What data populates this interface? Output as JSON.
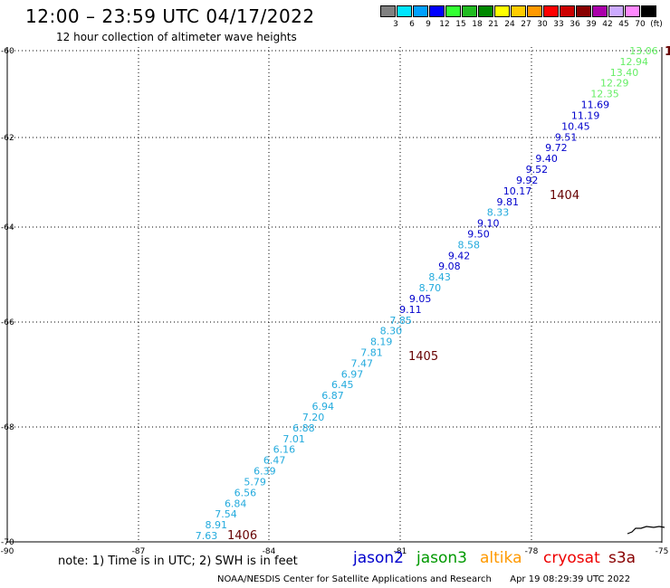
{
  "header": {
    "title": "12:00 – 23:59 UTC 04/17/2022",
    "subtitle": "12 hour collection of altimeter wave heights"
  },
  "colorbar": {
    "colors": [
      "#808080",
      "#00e5ff",
      "#00a0ff",
      "#0000ff",
      "#33ff33",
      "#22bb22",
      "#008800",
      "#ffff00",
      "#ffcc00",
      "#ff9900",
      "#ff0000",
      "#cc0000",
      "#880000",
      "#aa00aa",
      "#ccaaff",
      "#ff88ff",
      "#000000"
    ],
    "labels": [
      "3",
      "6",
      "9",
      "12",
      "15",
      "18",
      "21",
      "24",
      "27",
      "30",
      "33",
      "36",
      "39",
      "42",
      "45",
      "70",
      "(ft)"
    ]
  },
  "axes": {
    "x_ticks": [
      "-90",
      "-87",
      "-84",
      "-81",
      "-78",
      "-75"
    ],
    "y_ticks": [
      "-60",
      "-62",
      "-64",
      "-66",
      "-68",
      "-70"
    ]
  },
  "wave_heights": [
    {
      "value": "13.06",
      "color": "#66ee66"
    },
    {
      "value": "12.94",
      "color": "#66ee66"
    },
    {
      "value": "13.40",
      "color": "#66ee66"
    },
    {
      "value": "12.29",
      "color": "#66ee66"
    },
    {
      "value": "12.35",
      "color": "#66ee66"
    },
    {
      "value": "11.69",
      "color": "#0000cc"
    },
    {
      "value": "11.19",
      "color": "#0000cc"
    },
    {
      "value": "10.45",
      "color": "#0000cc"
    },
    {
      "value": "9.51",
      "color": "#0000cc"
    },
    {
      "value": "9.72",
      "color": "#0000cc"
    },
    {
      "value": "9.40",
      "color": "#0000cc"
    },
    {
      "value": "9.52",
      "color": "#0000cc"
    },
    {
      "value": "9.92",
      "color": "#0000cc"
    },
    {
      "value": "10.17",
      "color": "#0000cc"
    },
    {
      "value": "9.81",
      "color": "#0000cc"
    },
    {
      "value": "8.33",
      "color": "#22aadd"
    },
    {
      "value": "9.10",
      "color": "#0000cc"
    },
    {
      "value": "9.50",
      "color": "#0000cc"
    },
    {
      "value": "8.58",
      "color": "#22aadd"
    },
    {
      "value": "9.42",
      "color": "#0000cc"
    },
    {
      "value": "9.08",
      "color": "#0000cc"
    },
    {
      "value": "8.43",
      "color": "#22aadd"
    },
    {
      "value": "8.70",
      "color": "#22aadd"
    },
    {
      "value": "9.05",
      "color": "#0000cc"
    },
    {
      "value": "9.11",
      "color": "#0000cc"
    },
    {
      "value": "7.85",
      "color": "#22aadd"
    },
    {
      "value": "8.30",
      "color": "#22aadd"
    },
    {
      "value": "8.19",
      "color": "#22aadd"
    },
    {
      "value": "7.81",
      "color": "#22aadd"
    },
    {
      "value": "7.47",
      "color": "#22aadd"
    },
    {
      "value": "6.97",
      "color": "#22aadd"
    },
    {
      "value": "6.45",
      "color": "#22aadd"
    },
    {
      "value": "6.87",
      "color": "#22aadd"
    },
    {
      "value": "6.94",
      "color": "#22aadd"
    },
    {
      "value": "7.20",
      "color": "#22aadd"
    },
    {
      "value": "6.88",
      "color": "#22aadd"
    },
    {
      "value": "7.01",
      "color": "#22aadd"
    },
    {
      "value": "6.16",
      "color": "#22aadd"
    },
    {
      "value": "6.47",
      "color": "#22aadd"
    },
    {
      "value": "6.39",
      "color": "#22aadd"
    },
    {
      "value": "5.79",
      "color": "#22aadd"
    },
    {
      "value": "6.56",
      "color": "#22aadd"
    },
    {
      "value": "6.84",
      "color": "#22aadd"
    },
    {
      "value": "7.54",
      "color": "#22aadd"
    },
    {
      "value": "8.91",
      "color": "#22aadd"
    },
    {
      "value": "7.63",
      "color": "#22aadd"
    }
  ],
  "time_labels": [
    "1404",
    "1405",
    "1406"
  ],
  "edge_label": "1",
  "legend": {
    "note": "note: 1) Time is in UTC; 2) SWH is in feet",
    "satellites": [
      {
        "name": "jason2",
        "color": "#0000cc"
      },
      {
        "name": "jason3",
        "color": "#009900"
      },
      {
        "name": "altika",
        "color": "#ff9900"
      },
      {
        "name": "cryosat",
        "color": "#ee0000"
      },
      {
        "name": "s3a",
        "color": "#880000"
      }
    ]
  },
  "footer": {
    "credit": "NOAA/NESDIS Center for Satellite Applications and Research",
    "timestamp": "Apr 19 08:29:39 UTC 2022"
  }
}
